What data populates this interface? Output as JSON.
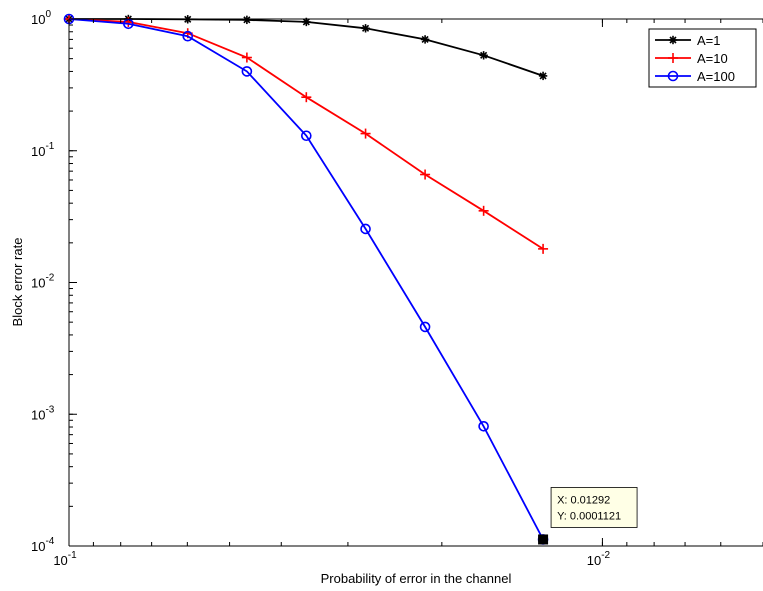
{
  "chart_data": {
    "type": "line",
    "xlabel": "Probability of error in the channel",
    "ylabel": "Block error rate",
    "x_scale": "log",
    "x_reversed": true,
    "y_scale": "log",
    "xlim": [
      0.1,
      0.005
    ],
    "ylim": [
      0.0001,
      1
    ],
    "grid": false,
    "legend_position": "top-right",
    "x_ticks": [
      {
        "value": 0.1,
        "label_base": "10",
        "label_exp": "-1"
      },
      {
        "value": 0.01,
        "label_base": "10",
        "label_exp": "-2"
      }
    ],
    "y_ticks": [
      {
        "value": 1,
        "label_base": "10",
        "label_exp": "0"
      },
      {
        "value": 0.1,
        "label_base": "10",
        "label_exp": "-1"
      },
      {
        "value": 0.01,
        "label_base": "10",
        "label_exp": "-2"
      },
      {
        "value": 0.001,
        "label_base": "10",
        "label_exp": "-3"
      },
      {
        "value": 0.0001,
        "label_base": "10",
        "label_exp": "-4"
      }
    ],
    "series": [
      {
        "name": "A=1",
        "color": "#000000",
        "marker": "asterisk",
        "x": [
          0.1,
          0.0774,
          0.0599,
          0.0464,
          0.0359,
          0.0278,
          0.0215,
          0.0167,
          0.01292
        ],
        "y": [
          1.0,
          1.0,
          0.995,
          0.985,
          0.95,
          0.85,
          0.7,
          0.53,
          0.37
        ]
      },
      {
        "name": "A=10",
        "color": "#ff0000",
        "marker": "plus",
        "x": [
          0.1,
          0.0774,
          0.0599,
          0.0464,
          0.0359,
          0.0278,
          0.0215,
          0.0167,
          0.01292
        ],
        "y": [
          1.0,
          0.95,
          0.78,
          0.51,
          0.255,
          0.135,
          0.066,
          0.035,
          0.018
        ]
      },
      {
        "name": "A=100",
        "color": "#0000ff",
        "marker": "circle",
        "x": [
          0.1,
          0.0774,
          0.0599,
          0.0464,
          0.0359,
          0.0278,
          0.0215,
          0.0167,
          0.01292
        ],
        "y": [
          1.0,
          0.92,
          0.74,
          0.4,
          0.13,
          0.0255,
          0.0046,
          0.00081,
          0.0001121
        ]
      }
    ],
    "annotations": [
      {
        "type": "datatip",
        "x": 0.01292,
        "y": 0.0001121,
        "lines": [
          "X: 0.01292",
          "Y: 0.0001121"
        ]
      }
    ]
  }
}
